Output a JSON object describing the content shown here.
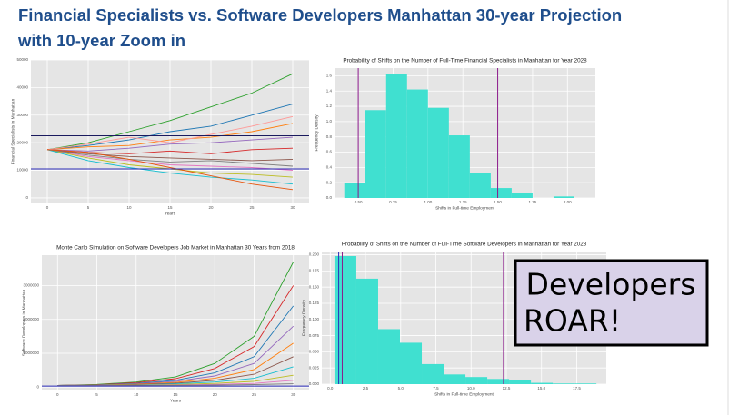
{
  "title": [
    "Financial Specialists vs. Software Developers Manhattan 30-year Projection",
    "with 10-year Zoom in"
  ],
  "callout": [
    "Developers",
    "ROAR!"
  ],
  "chart_data": [
    {
      "type": "line",
      "ylabel": "Financial Specialists in Manhattan",
      "xlabel": "Years",
      "x": [
        0,
        5,
        10,
        15,
        20,
        25,
        30
      ],
      "xlim": [
        -2,
        32
      ],
      "xticks": [
        0,
        5,
        10,
        15,
        20,
        25,
        30
      ],
      "ylim": [
        -2000,
        50000
      ],
      "yticks": [
        0,
        10000,
        20000,
        30000,
        40000,
        50000
      ],
      "grid": true,
      "series": [
        {
          "color": "#2ca02c",
          "values": [
            17500,
            20000,
            24000,
            28000,
            33000,
            38000,
            45000
          ]
        },
        {
          "color": "#1f77b4",
          "values": [
            17500,
            19000,
            21000,
            24000,
            26000,
            30000,
            34000
          ]
        },
        {
          "color": "#ff7f0e",
          "values": [
            17500,
            18500,
            19000,
            21000,
            22000,
            24000,
            27000
          ]
        },
        {
          "color": "#9467bd",
          "values": [
            17500,
            17000,
            18000,
            19500,
            20000,
            21000,
            22000
          ]
        },
        {
          "color": "#d62728",
          "values": [
            17500,
            16500,
            16000,
            17000,
            16000,
            17500,
            18000
          ]
        },
        {
          "color": "#8c564b",
          "values": [
            17500,
            16000,
            15000,
            14500,
            14000,
            13500,
            14000
          ]
        },
        {
          "color": "#e377c2",
          "values": [
            17500,
            15000,
            13500,
            12000,
            11500,
            11000,
            10000
          ]
        },
        {
          "color": "#bcbd22",
          "values": [
            17500,
            14500,
            12000,
            10500,
            9000,
            8500,
            7500
          ]
        },
        {
          "color": "#17becf",
          "values": [
            17500,
            13500,
            11000,
            9000,
            7500,
            6500,
            5000
          ]
        },
        {
          "color": "#7f7f7f",
          "values": [
            17500,
            15500,
            14000,
            13000,
            13500,
            12500,
            11500
          ]
        },
        {
          "color": "#ff9896",
          "values": [
            17500,
            19500,
            22000,
            20000,
            23000,
            26000,
            29500
          ]
        },
        {
          "color": "#e6550d",
          "values": [
            17500,
            16500,
            14000,
            11000,
            8000,
            5000,
            3000
          ]
        }
      ],
      "hlines": [
        {
          "value": 22500,
          "color": "#1a1a5e"
        },
        {
          "value": 10500,
          "color": "#2b2bb8"
        }
      ]
    },
    {
      "type": "histogram",
      "title": "Probability of Shifts on the Number of Full-Time Financial Specialists in Manhattan for Year 2028",
      "xlabel": "Shifts in Full-time Employment",
      "ylabel": "Frequency Density",
      "color": "#40e0d0",
      "bins": [
        0.4,
        0.55,
        0.7,
        0.85,
        1.0,
        1.15,
        1.3,
        1.45,
        1.6,
        1.75,
        1.9,
        2.05
      ],
      "counts": [
        0.2,
        1.15,
        1.62,
        1.42,
        1.18,
        0.82,
        0.33,
        0.13,
        0.06,
        0.0,
        0.02
      ],
      "xlim": [
        0.33,
        2.2
      ],
      "xticks": [
        {
          "value": 0.5,
          "label": "0.50"
        },
        {
          "value": 0.75,
          "label": "0.75"
        },
        {
          "value": 1.0,
          "label": "1.00"
        },
        {
          "value": 1.25,
          "label": "1.25"
        },
        {
          "value": 1.5,
          "label": "1.50"
        },
        {
          "value": 1.75,
          "label": "1.75"
        },
        {
          "value": 2.0,
          "label": "2.00"
        }
      ],
      "ylim": [
        0,
        1.7
      ],
      "yticks": [
        {
          "value": 0,
          "label": "0.0"
        },
        0.2,
        0.4,
        0.6,
        0.8,
        {
          "value": 1.0,
          "label": "1.0"
        },
        1.2,
        1.4,
        1.6
      ],
      "grid": true,
      "vlines": [
        {
          "value": 0.5,
          "color": "#8b1a8b"
        },
        {
          "value": 1.5,
          "color": "#8b1a8b"
        }
      ]
    },
    {
      "type": "line",
      "title": "Monte Carlo Simulation on Software Developers Job Market in Manhattan 30 Years from 2018",
      "ylabel": "Software Developers in Manhattan",
      "xlabel": "Years",
      "x": [
        0,
        5,
        10,
        15,
        20,
        25,
        30
      ],
      "xlim": [
        -2,
        32
      ],
      "xticks": [
        0,
        5,
        10,
        15,
        20,
        25,
        30
      ],
      "ylim": [
        -100000,
        3900000
      ],
      "yticks": [
        0,
        1000000,
        2000000,
        3000000
      ],
      "grid": true,
      "series": [
        {
          "color": "#2ca02c",
          "values": [
            50000,
            80000,
            150000,
            300000,
            700000,
            1500000,
            3700000
          ]
        },
        {
          "color": "#d62728",
          "values": [
            50000,
            70000,
            130000,
            250000,
            550000,
            1200000,
            3000000
          ]
        },
        {
          "color": "#1f77b4",
          "values": [
            50000,
            65000,
            110000,
            200000,
            420000,
            900000,
            2400000
          ]
        },
        {
          "color": "#9467bd",
          "values": [
            50000,
            60000,
            95000,
            170000,
            330000,
            700000,
            1800000
          ]
        },
        {
          "color": "#ff7f0e",
          "values": [
            50000,
            58000,
            85000,
            140000,
            260000,
            520000,
            1300000
          ]
        },
        {
          "color": "#8c564b",
          "values": [
            50000,
            55000,
            75000,
            115000,
            200000,
            380000,
            900000
          ]
        },
        {
          "color": "#17becf",
          "values": [
            50000,
            52000,
            65000,
            95000,
            150000,
            260000,
            600000
          ]
        },
        {
          "color": "#bcbd22",
          "values": [
            50000,
            50000,
            58000,
            75000,
            110000,
            170000,
            350000
          ]
        },
        {
          "color": "#e377c2",
          "values": [
            50000,
            48000,
            52000,
            62000,
            80000,
            110000,
            200000
          ]
        },
        {
          "color": "#7f7f7f",
          "values": [
            50000,
            46000,
            47000,
            52000,
            60000,
            75000,
            100000
          ]
        }
      ],
      "hlines": [
        {
          "value": 30000,
          "color": "#2b2bb8"
        }
      ]
    },
    {
      "type": "histogram",
      "title": "Probability of Shifts on the Number of Full-Time Software Developers in Manhattan for Year 2028",
      "xlabel": "Shifts in Full-time Employment",
      "ylabel": "Frequency Density",
      "color": "#40e0d0",
      "bins": [
        0.3,
        1.85,
        3.4,
        4.95,
        6.5,
        8.05,
        9.6,
        11.15,
        12.7,
        14.25,
        15.8,
        17.35,
        18.9
      ],
      "counts": [
        0.198,
        0.163,
        0.085,
        0.064,
        0.031,
        0.015,
        0.011,
        0.008,
        0.006,
        0.002,
        0.001,
        0.001
      ],
      "xlim": [
        -0.6,
        19.6
      ],
      "xticks": [
        {
          "value": 0,
          "label": "0.0"
        },
        2.5,
        {
          "value": 5,
          "label": "5.0"
        },
        7.5,
        {
          "value": 10,
          "label": "10.0"
        },
        12.5,
        {
          "value": 15,
          "label": "15.0"
        },
        17.5
      ],
      "ylim": [
        0,
        0.205
      ],
      "yticks": [
        {
          "value": 0,
          "label": "0.000"
        },
        0.025,
        {
          "value": 0.05,
          "label": "0.050"
        },
        0.075,
        {
          "value": 0.1,
          "label": "0.100"
        },
        0.125,
        {
          "value": 0.15,
          "label": "0.150"
        },
        0.175,
        {
          "value": 0.2,
          "label": "0.200"
        }
      ],
      "grid": true,
      "vlines": [
        {
          "value": 0.6,
          "color": "#2b2bb8"
        },
        {
          "value": 0.85,
          "color": "#8b1a8b"
        },
        {
          "value": 12.3,
          "color": "#8b1a8b"
        }
      ]
    }
  ]
}
